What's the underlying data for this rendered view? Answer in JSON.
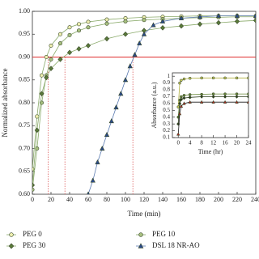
{
  "chart_data": [
    {
      "type": "line",
      "xlabel": "Time (min)",
      "ylabel": "Normalized absorbance",
      "xlim": [
        0,
        240
      ],
      "xticks": [
        0,
        20,
        40,
        60,
        80,
        100,
        120,
        140,
        160,
        180,
        200,
        220,
        240
      ],
      "ylim": [
        0.6,
        1.0
      ],
      "yticks": [
        {
          "value": 0.6,
          "label": "0.60"
        },
        {
          "value": 0.65,
          "label": "0.65"
        },
        {
          "value": 0.7,
          "label": "0.70"
        },
        {
          "value": 0.75,
          "label": "0.75"
        },
        {
          "value": 0.8,
          "label": "0.80"
        },
        {
          "value": 0.85,
          "label": "0.85"
        },
        {
          "value": 0.9,
          "label": "0.90"
        },
        {
          "value": 0.95,
          "label": "0.95"
        },
        {
          "value": 1.0,
          "label": "1.00"
        }
      ],
      "hline": {
        "value": 0.9,
        "color": "#e03030"
      },
      "vlines": {
        "values": [
          17,
          35,
          108
        ],
        "color": "#e07070"
      },
      "series": [
        {
          "name": "PEG 0",
          "marker": "circle",
          "color": "#eeeeb0",
          "line_color": "#8aaa6a",
          "x": [
            0,
            5,
            10,
            15,
            20,
            30,
            40,
            50,
            60,
            80,
            100,
            120,
            140,
            160,
            180,
            200,
            220,
            240
          ],
          "values": [
            0.655,
            0.77,
            0.86,
            0.9,
            0.925,
            0.95,
            0.965,
            0.972,
            0.977,
            0.982,
            0.985,
            0.987,
            0.988,
            0.989,
            0.99,
            0.99,
            0.99,
            0.99
          ]
        },
        {
          "name": "PEG 10",
          "marker": "circle",
          "color": "#a8c080",
          "line_color": "#8aaa6a",
          "x": [
            0,
            5,
            10,
            15,
            20,
            30,
            40,
            50,
            60,
            80,
            100,
            120,
            140,
            160,
            180,
            200,
            220,
            240
          ],
          "values": [
            0.61,
            0.7,
            0.8,
            0.86,
            0.895,
            0.93,
            0.948,
            0.958,
            0.965,
            0.973,
            0.978,
            0.981,
            0.983,
            0.985,
            0.986,
            0.987,
            0.988,
            0.988
          ]
        },
        {
          "name": "PEG 30",
          "marker": "diamond",
          "color": "#5a7a3a",
          "line_color": "#8aaa6a",
          "x": [
            0,
            5,
            10,
            15,
            20,
            30,
            40,
            50,
            60,
            80,
            100,
            120,
            140,
            160,
            180,
            200,
            220,
            240
          ],
          "values": [
            0.62,
            0.74,
            0.82,
            0.855,
            0.875,
            0.895,
            0.91,
            0.918,
            0.925,
            0.94,
            0.95,
            0.958,
            0.964,
            0.968,
            0.972,
            0.975,
            0.978,
            0.98
          ]
        },
        {
          "name": "DSL 18 NR-AO",
          "marker": "triangle",
          "color": "#2a4a8a",
          "line_color": "#5a7ab0",
          "x": [
            60,
            65,
            70,
            75,
            80,
            85,
            90,
            95,
            100,
            105,
            110,
            115,
            120,
            130,
            140,
            160,
            180,
            200,
            220,
            240
          ],
          "values": [
            0.6,
            0.63,
            0.67,
            0.7,
            0.73,
            0.76,
            0.79,
            0.82,
            0.85,
            0.88,
            0.905,
            0.93,
            0.95,
            0.97,
            0.978,
            0.985,
            0.988,
            0.99,
            0.99,
            0.99
          ]
        }
      ]
    },
    {
      "type": "line",
      "xlabel": "Time (hr)",
      "ylabel": "Absorbance (a.u.)",
      "xlim": [
        -2,
        24
      ],
      "xticks": [
        0,
        4,
        8,
        12,
        16,
        20,
        24
      ],
      "ylim": [
        0.1,
        1.05
      ],
      "yticks": [
        0.1,
        0.2,
        0.3,
        0.4,
        0.5,
        0.6,
        0.7,
        0.8,
        0.9,
        1
      ],
      "series": [
        {
          "marker": "circle",
          "color": "#d8d860",
          "line_color": "#b0b040",
          "x": [
            0,
            0.5,
            1,
            2,
            4,
            8,
            12,
            16,
            20,
            24
          ],
          "values": [
            0.55,
            0.9,
            0.94,
            0.96,
            0.97,
            0.975,
            0.975,
            0.975,
            0.975,
            0.975
          ]
        },
        {
          "marker": "circle",
          "color": "#6a8a3a",
          "line_color": "#6a8a3a",
          "x": [
            0,
            0.5,
            1,
            2,
            4,
            8,
            12,
            16,
            20,
            24
          ],
          "values": [
            0.4,
            0.65,
            0.7,
            0.72,
            0.73,
            0.735,
            0.74,
            0.74,
            0.74,
            0.74
          ]
        },
        {
          "marker": "diamond",
          "color": "#2a3a1a",
          "line_color": "#2a3a1a",
          "x": [
            0,
            0.5,
            1,
            2,
            4,
            8,
            12,
            16,
            20,
            24
          ],
          "values": [
            0.3,
            0.6,
            0.66,
            0.68,
            0.69,
            0.7,
            0.7,
            0.7,
            0.7,
            0.7
          ]
        },
        {
          "marker": "triangle",
          "color": "#c02020",
          "line_color": "#1a1a1a",
          "x": [
            0,
            0.5,
            1,
            2,
            4,
            8,
            12,
            16,
            20,
            24
          ],
          "values": [
            0.15,
            0.45,
            0.56,
            0.6,
            0.62,
            0.62,
            0.62,
            0.62,
            0.62,
            0.62
          ]
        }
      ]
    }
  ]
}
